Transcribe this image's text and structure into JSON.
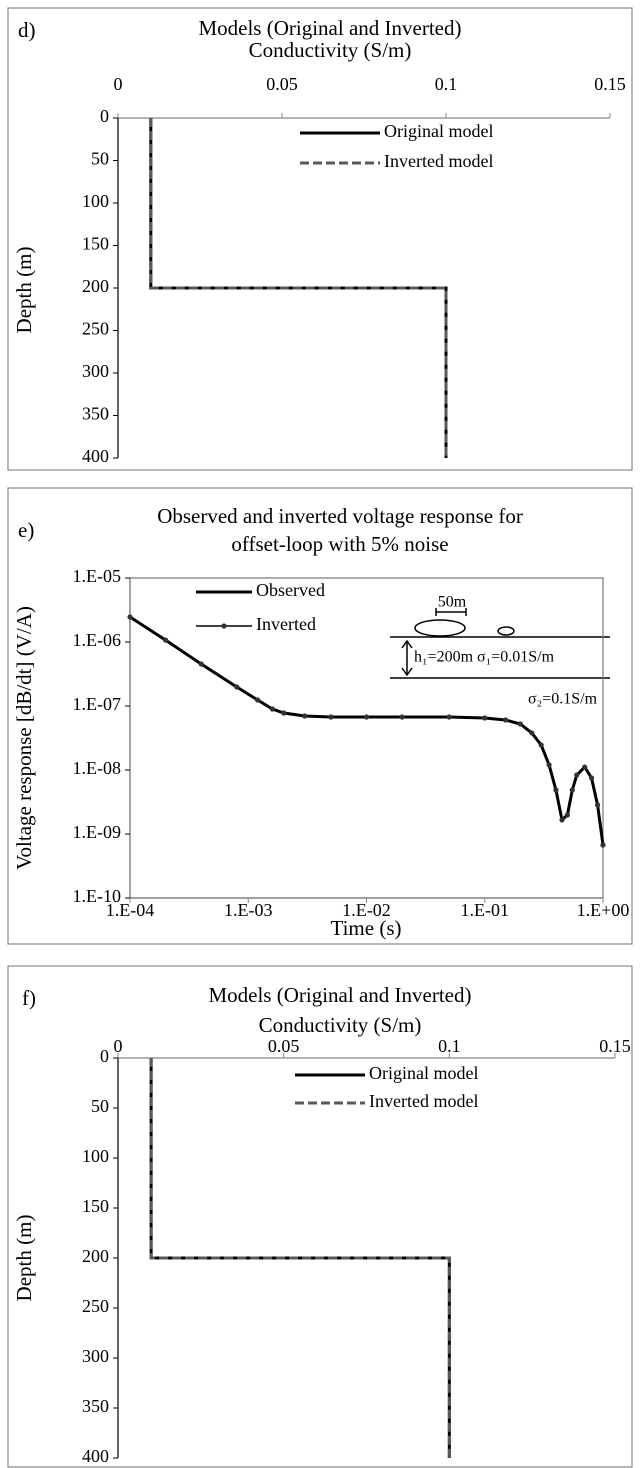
{
  "chart_data": [
    {
      "type": "line",
      "panel_label": "d)",
      "title": [
        "Models (Original and Inverted)"
      ],
      "x_label": "Conductivity (S/m)",
      "y_label": "Depth (m)",
      "x_axis_position": "top",
      "y_inverted": true,
      "xlim": [
        0,
        0.15
      ],
      "xticks": [
        0,
        0.05,
        0.1,
        0.15
      ],
      "ylim": [
        0,
        400
      ],
      "yticks": [
        0,
        50,
        100,
        150,
        200,
        250,
        300,
        350,
        400
      ],
      "legend": "upper right",
      "series": [
        {
          "name": "Original model",
          "color": "#000000",
          "dashed": false,
          "markers": false,
          "x": [
            0.01,
            0.01,
            0.1,
            0.1
          ],
          "values": [
            0,
            200,
            200,
            400
          ]
        },
        {
          "name": "Inverted model",
          "color": "#595959",
          "dashed": true,
          "markers": false,
          "x": [
            0.01,
            0.01,
            0.1,
            0.1
          ],
          "values": [
            0,
            200,
            200,
            400
          ]
        }
      ]
    },
    {
      "type": "line",
      "panel_label": "e)",
      "title": [
        "Observed and inverted voltage response for",
        "offset-loop with 5% noise"
      ],
      "x_label": "Time (s)",
      "y_label": "Voltage response [dB/dt] (V/A)",
      "x_axis_position": "bottom",
      "y_inverted": false,
      "x_log": true,
      "y_log": true,
      "xlim": [
        0.0001,
        1
      ],
      "xticks": [
        {
          "value": 0.0001,
          "label": "1.E-04"
        },
        {
          "value": 0.001,
          "label": "1.E-03"
        },
        {
          "value": 0.01,
          "label": "1.E-02"
        },
        {
          "value": 0.1,
          "label": "1.E-01"
        },
        {
          "value": 1,
          "label": "1.E+00"
        }
      ],
      "ylim": [
        1e-10,
        1e-05
      ],
      "yticks": [
        {
          "value": 1e-10,
          "label": "1.E-10"
        },
        {
          "value": 1e-09,
          "label": "1.E-09"
        },
        {
          "value": 1e-08,
          "label": "1.E-08"
        },
        {
          "value": 1e-07,
          "label": "1.E-07"
        },
        {
          "value": 1e-06,
          "label": "1.E-06"
        },
        {
          "value": 1e-05,
          "label": "1.E-05"
        }
      ],
      "legend": "upper left",
      "annotations": [
        "50m",
        "h₁=200m σ₁=0.01S/m",
        "σ₂=0.1S/m"
      ],
      "series": [
        {
          "name": "Observed",
          "color": "#000000",
          "dashed": false,
          "markers": false,
          "x": [
            0.0001,
            0.0002,
            0.0004,
            0.0008,
            0.0012,
            0.0016,
            0.002,
            0.003,
            0.005,
            0.01,
            0.02,
            0.05,
            0.1,
            0.15,
            0.2,
            0.25,
            0.3,
            0.35,
            0.4,
            0.45,
            0.5,
            0.55,
            0.6,
            0.7,
            0.8,
            0.9,
            1
          ],
          "values": [
            2.46e-06,
            1.07e-06,
            4.53e-07,
            1.98e-07,
            1.24e-07,
            8.98e-08,
            7.78e-08,
            6.98e-08,
            6.73e-08,
            6.73e-08,
            6.73e-08,
            6.73e-08,
            6.49e-08,
            6.04e-08,
            5.23e-08,
            3.79e-08,
            2.46e-08,
            1.2e-08,
            4.87e-09,
            1.66e-09,
            1.98e-09,
            4.87e-09,
            8.35e-09,
            1.11e-08,
            7.5e-09,
            2.84e-09,
            6.73e-10
          ]
        },
        {
          "name": "Inverted",
          "color": "#000000",
          "dashed": false,
          "markers": true,
          "x": [
            0.0001,
            0.0002,
            0.0004,
            0.0008,
            0.0012,
            0.0016,
            0.002,
            0.003,
            0.005,
            0.01,
            0.02,
            0.05,
            0.1,
            0.15,
            0.2,
            0.25,
            0.3,
            0.35,
            0.4,
            0.45,
            0.5,
            0.55,
            0.6,
            0.7,
            0.8,
            0.9,
            1
          ],
          "values": [
            2.46e-06,
            1.07e-06,
            4.53e-07,
            1.98e-07,
            1.24e-07,
            8.98e-08,
            7.78e-08,
            6.98e-08,
            6.73e-08,
            6.73e-08,
            6.73e-08,
            6.73e-08,
            6.49e-08,
            6.04e-08,
            5.23e-08,
            3.79e-08,
            2.46e-08,
            1.2e-08,
            4.87e-09,
            1.66e-09,
            1.98e-09,
            4.87e-09,
            8.35e-09,
            1.11e-08,
            7.5e-09,
            2.84e-09,
            6.73e-10
          ]
        }
      ]
    },
    {
      "type": "line",
      "panel_label": "f)",
      "title": [
        "Models (Original  and Inverted)"
      ],
      "x_label": "Conductivity (S/m)",
      "y_label": "Depth (m)",
      "x_axis_position": "top",
      "y_inverted": true,
      "xlim": [
        0,
        0.15
      ],
      "xticks": [
        0,
        0.05,
        0.1,
        0.15
      ],
      "ylim": [
        0,
        400
      ],
      "yticks": [
        0,
        50,
        100,
        150,
        200,
        250,
        300,
        350,
        400
      ],
      "legend": "upper right",
      "series": [
        {
          "name": "Original model",
          "color": "#000000",
          "dashed": false,
          "markers": false,
          "x": [
            0.01,
            0.01,
            0.1,
            0.1
          ],
          "values": [
            0,
            200,
            200,
            400
          ]
        },
        {
          "name": "Inverted model",
          "color": "#595959",
          "dashed": true,
          "markers": false,
          "x": [
            0.01,
            0.01,
            0.1,
            0.1
          ],
          "values": [
            0,
            200,
            200,
            400
          ]
        }
      ]
    }
  ]
}
